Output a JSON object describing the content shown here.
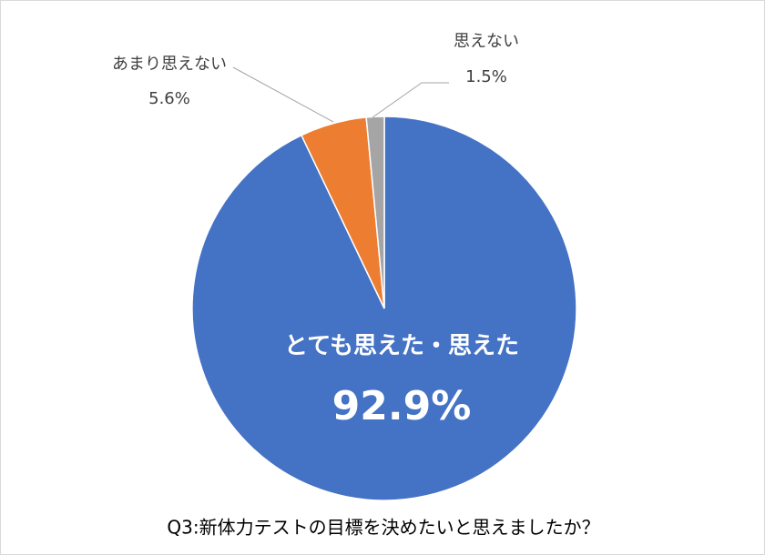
{
  "chart_data": {
    "type": "pie",
    "title": "Q3:新体力テストの目標を決めたいと思えましたか？",
    "categories": [
      "とても思えた・思えた",
      "あまり思えない",
      "思えない"
    ],
    "values": [
      92.9,
      5.6,
      1.5
    ],
    "value_labels": [
      "92.9%",
      "5.6%",
      "1.5%"
    ],
    "colors": [
      "#4472c4",
      "#ed7d31",
      "#a5a5a5"
    ]
  }
}
